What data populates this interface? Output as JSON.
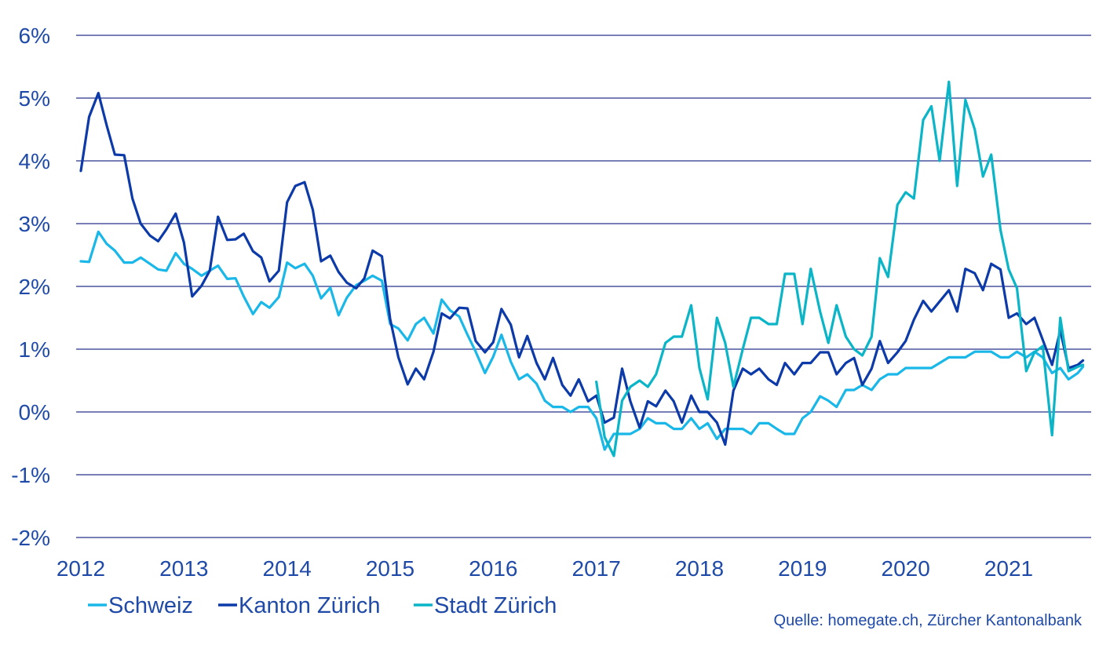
{
  "chart_data": {
    "type": "line",
    "title": "",
    "xlabel": "",
    "ylabel": "",
    "ylim": [
      -2,
      6
    ],
    "xlim": [
      2012,
      2021.75
    ],
    "y_ticks": [
      -2,
      -1,
      0,
      1,
      2,
      3,
      4,
      5,
      6
    ],
    "y_tick_labels": [
      "-2%",
      "-1%",
      "0%",
      "1%",
      "2%",
      "3%",
      "4%",
      "5%",
      "6%"
    ],
    "x_ticks": [
      2012,
      2013,
      2014,
      2015,
      2016,
      2017,
      2018,
      2019,
      2020,
      2021
    ],
    "x_tick_labels": [
      "2012",
      "2013",
      "2014",
      "2015",
      "2016",
      "2017",
      "2018",
      "2019",
      "2020",
      "2021"
    ],
    "grid": true,
    "legend_position": "bottom-left",
    "source": "Quelle: homegate.ch, Zürcher Kantonalbank",
    "series": [
      {
        "name": "Schweiz",
        "color": "#1ab8e8",
        "points": [
          [
            2012.0,
            2.4
          ],
          [
            2.08,
            2.39
          ],
          [
            2.17,
            2.87
          ],
          [
            2.25,
            2.68
          ],
          [
            2.33,
            2.57
          ],
          [
            2.42,
            2.38
          ],
          [
            2.5,
            2.38
          ],
          [
            2.58,
            2.46
          ],
          [
            2.67,
            2.36
          ],
          [
            2.75,
            2.27
          ],
          [
            2.83,
            2.25
          ],
          [
            2.92,
            2.53
          ],
          [
            3.0,
            2.36
          ],
          [
            3.08,
            2.28
          ],
          [
            3.17,
            2.17
          ],
          [
            3.25,
            2.25
          ],
          [
            3.33,
            2.33
          ],
          [
            3.42,
            2.12
          ],
          [
            3.5,
            2.13
          ],
          [
            3.58,
            1.84
          ],
          [
            3.67,
            1.56
          ],
          [
            3.75,
            1.75
          ],
          [
            3.83,
            1.66
          ],
          [
            3.92,
            1.83
          ],
          [
            4.0,
            2.38
          ],
          [
            4.08,
            2.29
          ],
          [
            4.17,
            2.36
          ],
          [
            4.25,
            2.17
          ],
          [
            4.33,
            1.81
          ],
          [
            4.42,
            1.98
          ],
          [
            4.5,
            1.54
          ],
          [
            4.58,
            1.82
          ],
          [
            4.67,
            2.02
          ],
          [
            4.75,
            2.09
          ],
          [
            4.83,
            2.17
          ],
          [
            4.92,
            2.09
          ],
          [
            5.0,
            1.4
          ],
          [
            5.08,
            1.33
          ],
          [
            5.17,
            1.14
          ],
          [
            5.25,
            1.4
          ],
          [
            5.33,
            1.5
          ],
          [
            5.42,
            1.25
          ],
          [
            5.5,
            1.79
          ],
          [
            5.58,
            1.62
          ],
          [
            5.67,
            1.52
          ],
          [
            5.75,
            1.23
          ],
          [
            5.83,
            0.96
          ],
          [
            5.92,
            0.62
          ],
          [
            6.0,
            0.88
          ],
          [
            6.08,
            1.23
          ],
          [
            6.17,
            0.8
          ],
          [
            6.25,
            0.52
          ],
          [
            6.33,
            0.6
          ],
          [
            6.42,
            0.45
          ],
          [
            6.5,
            0.18
          ],
          [
            6.58,
            0.08
          ],
          [
            6.67,
            0.08
          ],
          [
            6.75,
            0.0
          ],
          [
            6.83,
            0.08
          ],
          [
            6.92,
            0.08
          ],
          [
            7.0,
            -0.1
          ],
          [
            7.08,
            -0.6
          ],
          [
            7.17,
            -0.35
          ],
          [
            7.25,
            -0.35
          ],
          [
            7.33,
            -0.35
          ],
          [
            7.42,
            -0.27
          ],
          [
            7.5,
            -0.1
          ],
          [
            7.58,
            -0.18
          ],
          [
            7.67,
            -0.18
          ],
          [
            7.75,
            -0.27
          ],
          [
            7.83,
            -0.27
          ],
          [
            7.92,
            -0.1
          ],
          [
            8.0,
            -0.27
          ],
          [
            8.08,
            -0.18
          ],
          [
            8.17,
            -0.43
          ],
          [
            8.25,
            -0.27
          ],
          [
            8.33,
            -0.27
          ],
          [
            8.42,
            -0.27
          ],
          [
            8.5,
            -0.35
          ],
          [
            8.58,
            -0.18
          ],
          [
            8.67,
            -0.18
          ],
          [
            8.75,
            -0.27
          ],
          [
            8.83,
            -0.35
          ],
          [
            8.92,
            -0.35
          ],
          [
            9.0,
            -0.1
          ],
          [
            9.08,
            0.0
          ],
          [
            9.17,
            0.25
          ],
          [
            9.25,
            0.18
          ],
          [
            9.33,
            0.08
          ],
          [
            9.42,
            0.35
          ],
          [
            9.5,
            0.35
          ],
          [
            9.58,
            0.43
          ],
          [
            9.67,
            0.35
          ],
          [
            9.75,
            0.52
          ],
          [
            9.83,
            0.6
          ],
          [
            9.92,
            0.6
          ],
          [
            10.0,
            0.7
          ],
          [
            10.08,
            0.7
          ],
          [
            10.17,
            0.7
          ],
          [
            10.25,
            0.7
          ],
          [
            10.33,
            0.78
          ],
          [
            10.42,
            0.87
          ],
          [
            10.5,
            0.87
          ],
          [
            10.58,
            0.87
          ],
          [
            10.67,
            0.96
          ],
          [
            10.75,
            0.96
          ],
          [
            10.83,
            0.96
          ],
          [
            10.92,
            0.87
          ],
          [
            11.0,
            0.87
          ],
          [
            11.08,
            0.96
          ],
          [
            11.17,
            0.87
          ],
          [
            11.25,
            0.96
          ],
          [
            11.33,
            0.87
          ],
          [
            11.42,
            0.62
          ],
          [
            11.5,
            0.7
          ],
          [
            11.58,
            0.52
          ],
          [
            11.67,
            0.62
          ],
          [
            11.72,
            0.72
          ]
        ]
      },
      {
        "name": "Kanton Zürich",
        "color": "#0d3aa9",
        "points": [
          [
            2012.0,
            3.84
          ],
          [
            2.08,
            4.7
          ],
          [
            2.17,
            5.08
          ],
          [
            2.25,
            4.57
          ],
          [
            2.33,
            4.1
          ],
          [
            2.42,
            4.09
          ],
          [
            2.5,
            3.4
          ],
          [
            2.58,
            3.0
          ],
          [
            2.67,
            2.81
          ],
          [
            2.75,
            2.72
          ],
          [
            2.83,
            2.91
          ],
          [
            2.92,
            3.16
          ],
          [
            3.0,
            2.7
          ],
          [
            3.08,
            1.84
          ],
          [
            3.17,
            2.01
          ],
          [
            3.25,
            2.25
          ],
          [
            3.33,
            3.11
          ],
          [
            3.42,
            2.74
          ],
          [
            3.5,
            2.75
          ],
          [
            3.58,
            2.84
          ],
          [
            3.67,
            2.56
          ],
          [
            3.75,
            2.46
          ],
          [
            3.83,
            2.08
          ],
          [
            3.92,
            2.25
          ],
          [
            4.0,
            3.34
          ],
          [
            4.08,
            3.6
          ],
          [
            4.17,
            3.66
          ],
          [
            4.25,
            3.22
          ],
          [
            4.33,
            2.4
          ],
          [
            4.42,
            2.49
          ],
          [
            4.5,
            2.23
          ],
          [
            4.58,
            2.06
          ],
          [
            4.67,
            1.97
          ],
          [
            4.75,
            2.13
          ],
          [
            4.83,
            2.57
          ],
          [
            4.92,
            2.48
          ],
          [
            5.0,
            1.48
          ],
          [
            5.08,
            0.87
          ],
          [
            5.17,
            0.44
          ],
          [
            5.25,
            0.69
          ],
          [
            5.33,
            0.52
          ],
          [
            5.42,
            0.96
          ],
          [
            5.5,
            1.57
          ],
          [
            5.58,
            1.49
          ],
          [
            5.67,
            1.66
          ],
          [
            5.75,
            1.65
          ],
          [
            5.83,
            1.13
          ],
          [
            5.92,
            0.95
          ],
          [
            6.0,
            1.11
          ],
          [
            6.08,
            1.64
          ],
          [
            6.17,
            1.39
          ],
          [
            6.25,
            0.87
          ],
          [
            6.33,
            1.21
          ],
          [
            6.42,
            0.78
          ],
          [
            6.5,
            0.52
          ],
          [
            6.58,
            0.86
          ],
          [
            6.67,
            0.43
          ],
          [
            6.75,
            0.26
          ],
          [
            6.83,
            0.52
          ],
          [
            6.92,
            0.17
          ],
          [
            7.0,
            0.26
          ],
          [
            7.08,
            -0.17
          ],
          [
            7.17,
            -0.09
          ],
          [
            7.25,
            0.69
          ],
          [
            7.33,
            0.17
          ],
          [
            7.42,
            -0.25
          ],
          [
            7.5,
            0.17
          ],
          [
            7.58,
            0.09
          ],
          [
            7.67,
            0.34
          ],
          [
            7.75,
            0.17
          ],
          [
            7.83,
            -0.17
          ],
          [
            7.92,
            0.26
          ],
          [
            8.0,
            0.0
          ],
          [
            8.08,
            0.0
          ],
          [
            8.17,
            -0.17
          ],
          [
            8.25,
            -0.52
          ],
          [
            8.33,
            0.34
          ],
          [
            8.42,
            0.69
          ],
          [
            8.5,
            0.6
          ],
          [
            8.58,
            0.69
          ],
          [
            8.67,
            0.52
          ],
          [
            8.75,
            0.43
          ],
          [
            8.83,
            0.78
          ],
          [
            8.92,
            0.6
          ],
          [
            9.0,
            0.78
          ],
          [
            9.08,
            0.78
          ],
          [
            9.17,
            0.95
          ],
          [
            9.25,
            0.95
          ],
          [
            9.33,
            0.6
          ],
          [
            9.42,
            0.78
          ],
          [
            9.5,
            0.86
          ],
          [
            9.58,
            0.43
          ],
          [
            9.67,
            0.69
          ],
          [
            9.75,
            1.13
          ],
          [
            9.83,
            0.78
          ],
          [
            9.92,
            0.95
          ],
          [
            10.0,
            1.13
          ],
          [
            10.08,
            1.47
          ],
          [
            10.17,
            1.77
          ],
          [
            10.25,
            1.6
          ],
          [
            10.33,
            1.76
          ],
          [
            10.42,
            1.94
          ],
          [
            10.5,
            1.6
          ],
          [
            10.58,
            2.28
          ],
          [
            10.67,
            2.21
          ],
          [
            10.75,
            1.94
          ],
          [
            10.83,
            2.36
          ],
          [
            10.92,
            2.27
          ],
          [
            11.0,
            1.5
          ],
          [
            11.08,
            1.57
          ],
          [
            11.17,
            1.4
          ],
          [
            11.25,
            1.5
          ],
          [
            11.33,
            1.15
          ],
          [
            11.42,
            0.75
          ],
          [
            11.5,
            1.3
          ],
          [
            11.58,
            0.7
          ],
          [
            11.67,
            0.75
          ],
          [
            11.72,
            0.82
          ]
        ]
      },
      {
        "name": "Stadt Zürich",
        "color": "#0ab5c8",
        "points": [
          [
            2017.0,
            0.48
          ],
          [
            7.08,
            -0.4
          ],
          [
            7.17,
            -0.7
          ],
          [
            7.25,
            0.18
          ],
          [
            7.33,
            0.4
          ],
          [
            7.42,
            0.5
          ],
          [
            7.5,
            0.4
          ],
          [
            7.58,
            0.6
          ],
          [
            7.67,
            1.1
          ],
          [
            7.75,
            1.2
          ],
          [
            7.83,
            1.2
          ],
          [
            7.92,
            1.7
          ],
          [
            8.0,
            0.7
          ],
          [
            8.08,
            0.2
          ],
          [
            8.17,
            1.5
          ],
          [
            8.25,
            1.1
          ],
          [
            8.33,
            0.4
          ],
          [
            8.42,
            1.0
          ],
          [
            8.5,
            1.5
          ],
          [
            8.58,
            1.5
          ],
          [
            8.67,
            1.4
          ],
          [
            8.75,
            1.4
          ],
          [
            8.83,
            2.2
          ],
          [
            8.92,
            2.2
          ],
          [
            9.0,
            1.4
          ],
          [
            9.08,
            2.28
          ],
          [
            9.17,
            1.6
          ],
          [
            9.25,
            1.1
          ],
          [
            9.33,
            1.7
          ],
          [
            9.42,
            1.2
          ],
          [
            9.5,
            1.0
          ],
          [
            9.58,
            0.9
          ],
          [
            9.67,
            1.2
          ],
          [
            9.75,
            2.45
          ],
          [
            9.83,
            2.15
          ],
          [
            9.92,
            3.3
          ],
          [
            10.0,
            3.5
          ],
          [
            10.08,
            3.4
          ],
          [
            10.17,
            4.65
          ],
          [
            10.25,
            4.87
          ],
          [
            10.33,
            4.0
          ],
          [
            10.42,
            5.26
          ],
          [
            10.5,
            3.6
          ],
          [
            10.58,
            4.97
          ],
          [
            10.67,
            4.5
          ],
          [
            10.75,
            3.75
          ],
          [
            10.83,
            4.1
          ],
          [
            10.92,
            2.9
          ],
          [
            11.0,
            2.27
          ],
          [
            11.08,
            1.97
          ],
          [
            11.17,
            0.65
          ],
          [
            11.25,
            0.95
          ],
          [
            11.33,
            1.05
          ],
          [
            11.42,
            -0.37
          ],
          [
            11.5,
            1.5
          ],
          [
            11.58,
            0.65
          ],
          [
            11.67,
            0.72
          ],
          [
            11.72,
            0.75
          ]
        ]
      }
    ]
  }
}
